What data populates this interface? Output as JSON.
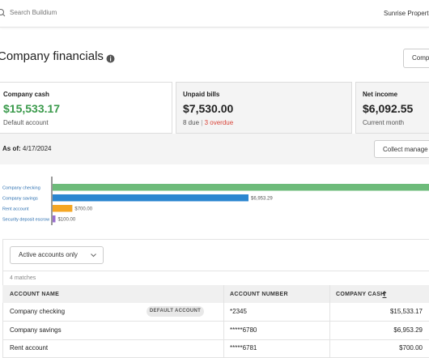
{
  "header": {
    "search_placeholder": "Search Buildium",
    "account_name": "Sunrise Propert"
  },
  "page": {
    "title": "Company financials",
    "button": "Comp"
  },
  "cards": [
    {
      "label": "Company cash",
      "value": "$15,533.17",
      "sub": "Default account"
    },
    {
      "label": "Unpaid bills",
      "value": "$7,530.00",
      "sub_due": "8 due",
      "sub_separator": "|",
      "sub_overdue": "3 overdue"
    },
    {
      "label": "Net income",
      "value": "$6,092.55",
      "sub": "Current month"
    }
  ],
  "as_of": {
    "label": "As of:",
    "date": "4/17/2024"
  },
  "collect_button": "Collect manage",
  "chart_data": {
    "type": "bar",
    "orientation": "horizontal",
    "categories": [
      "Company checking",
      "Company savings",
      "Rent account",
      "Security deposit escrow"
    ],
    "values": [
      15533.17,
      6953.29,
      700,
      100
    ],
    "value_labels": [
      null,
      "$6,953.29",
      "$700.00",
      "$100.00"
    ],
    "colors": [
      "#6dbb7a",
      "#2b86d0",
      "#f5a623",
      "#9b6fd0"
    ]
  },
  "filter": {
    "dropdown": "Active accounts only",
    "matches": "4 matches"
  },
  "table": {
    "headers": [
      "ACCOUNT NAME",
      "ACCOUNT NUMBER",
      "COMPANY CASH"
    ],
    "rows": [
      [
        "Company checking",
        "*2345",
        "$15,533.17"
      ],
      [
        "Company savings",
        "*****6780",
        "$6,953.29"
      ],
      [
        "Rent account",
        "*****6781",
        "$700.00"
      ]
    ],
    "badge": "DEFAULT ACCOUNT"
  }
}
